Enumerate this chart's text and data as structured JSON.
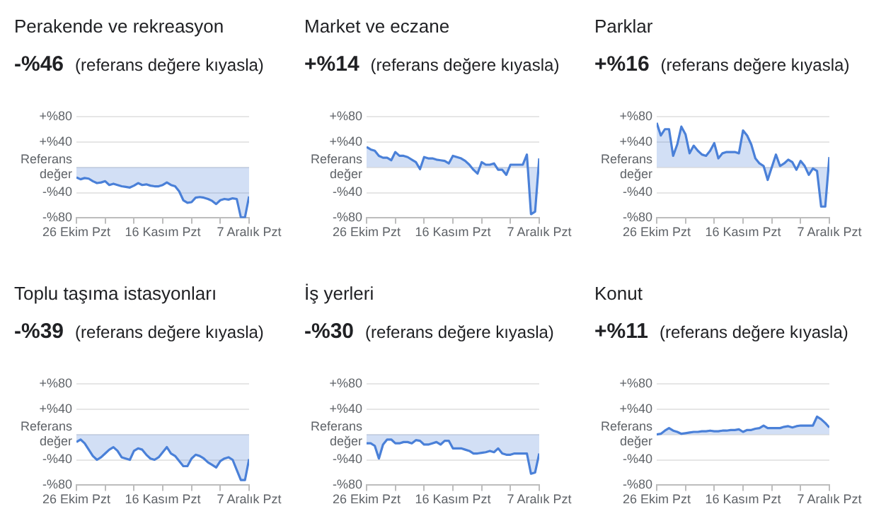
{
  "chart_data": [
    {
      "type": "area",
      "title": "Perakende ve rekreasyon",
      "subtitle": "-%46 (referans değere kıyasla)",
      "color": "#4a80d8",
      "x": [
        "--10-26",
        "--10-27",
        "--10-28",
        "--10-29",
        "--10-30",
        "--10-31",
        "--11-01",
        "--11-02",
        "--11-03",
        "--11-04",
        "--11-05",
        "--11-06",
        "--11-07",
        "--11-08",
        "--11-09",
        "--11-10",
        "--11-11",
        "--11-12",
        "--11-13",
        "--11-14",
        "--11-15",
        "--11-16",
        "--11-17",
        "--11-18",
        "--11-19",
        "--11-20",
        "--11-21",
        "--11-22",
        "--11-23",
        "--11-24",
        "--11-25",
        "--11-26",
        "--11-27",
        "--11-28",
        "--11-29",
        "--11-30",
        "--12-01",
        "--12-02",
        "--12-03",
        "--12-04",
        "--12-05",
        "--12-06",
        "--12-07"
      ],
      "values": [
        -16,
        -19,
        -17,
        -18,
        -22,
        -25,
        -24,
        -22,
        -28,
        -26,
        -28,
        -30,
        -31,
        -32,
        -29,
        -25,
        -28,
        -27,
        -29,
        -30,
        -30,
        -28,
        -24,
        -28,
        -30,
        -38,
        -52,
        -56,
        -55,
        -48,
        -47,
        -48,
        -50,
        -53,
        -58,
        -52,
        -50,
        -51,
        -49,
        -50,
        -79,
        -79,
        -46
      ],
      "xlim": [
        "--10-26",
        "--12-07"
      ],
      "xticks": [
        {
          "value": "--10-26",
          "label": "26 Ekim Pzt"
        },
        {
          "value": "--11-02",
          "label": null
        },
        {
          "value": "--11-09",
          "label": null
        },
        {
          "value": "--11-16",
          "label": "16 Kasım Pzt"
        },
        {
          "value": "--11-23",
          "label": null
        },
        {
          "value": "--11-30",
          "label": null
        },
        {
          "value": "--12-07",
          "label": "7 Aralık Pzt"
        }
      ],
      "ylim": [
        -80,
        80
      ],
      "yticks": [
        {
          "value": -80,
          "label": "-%80"
        },
        {
          "value": -40,
          "label": "-%40"
        },
        {
          "value": 0,
          "label": "Referans değer"
        },
        {
          "value": 40,
          "label": "+%40"
        },
        {
          "value": 80,
          "label": "+%80"
        }
      ],
      "grid": "y"
    },
    {
      "type": "area",
      "title": "Market ve eczane",
      "subtitle": "+%14 (referans değere kıyasla)",
      "color": "#4a80d8",
      "x": [
        "--10-26",
        "--10-27",
        "--10-28",
        "--10-29",
        "--10-30",
        "--10-31",
        "--11-01",
        "--11-02",
        "--11-03",
        "--11-04",
        "--11-05",
        "--11-06",
        "--11-07",
        "--11-08",
        "--11-09",
        "--11-10",
        "--11-11",
        "--11-12",
        "--11-13",
        "--11-14",
        "--11-15",
        "--11-16",
        "--11-17",
        "--11-18",
        "--11-19",
        "--11-20",
        "--11-21",
        "--11-22",
        "--11-23",
        "--11-24",
        "--11-25",
        "--11-26",
        "--11-27",
        "--11-28",
        "--11-29",
        "--11-30",
        "--12-01",
        "--12-02",
        "--12-03",
        "--12-04",
        "--12-05",
        "--12-06",
        "--12-07"
      ],
      "values": [
        32,
        28,
        26,
        18,
        15,
        15,
        11,
        24,
        18,
        18,
        16,
        12,
        8,
        -3,
        16,
        14,
        14,
        12,
        11,
        10,
        6,
        18,
        16,
        14,
        10,
        4,
        -4,
        -10,
        8,
        4,
        4,
        6,
        -4,
        -4,
        -12,
        4,
        4,
        4,
        4,
        20,
        -74,
        -70,
        14
      ],
      "xlim": [
        "--10-26",
        "--12-07"
      ],
      "xticks": [
        {
          "value": "--10-26",
          "label": "26 Ekim Pzt"
        },
        {
          "value": "--11-02",
          "label": null
        },
        {
          "value": "--11-09",
          "label": null
        },
        {
          "value": "--11-16",
          "label": "16 Kasım Pzt"
        },
        {
          "value": "--11-23",
          "label": null
        },
        {
          "value": "--11-30",
          "label": null
        },
        {
          "value": "--12-07",
          "label": "7 Aralık Pzt"
        }
      ],
      "ylim": [
        -80,
        80
      ],
      "yticks": [
        {
          "value": -80,
          "label": "-%80"
        },
        {
          "value": -40,
          "label": "-%40"
        },
        {
          "value": 0,
          "label": "Referans değer"
        },
        {
          "value": 40,
          "label": "+%40"
        },
        {
          "value": 80,
          "label": "+%80"
        }
      ],
      "grid": "y"
    },
    {
      "type": "area",
      "title": "Parklar",
      "subtitle": "+%16 (referans değere kıyasla)",
      "color": "#4a80d8",
      "x": [
        "--10-26",
        "--10-27",
        "--10-28",
        "--10-29",
        "--10-30",
        "--10-31",
        "--11-01",
        "--11-02",
        "--11-03",
        "--11-04",
        "--11-05",
        "--11-06",
        "--11-07",
        "--11-08",
        "--11-09",
        "--11-10",
        "--11-11",
        "--11-12",
        "--11-13",
        "--11-14",
        "--11-15",
        "--11-16",
        "--11-17",
        "--11-18",
        "--11-19",
        "--11-20",
        "--11-21",
        "--11-22",
        "--11-23",
        "--11-24",
        "--11-25",
        "--11-26",
        "--11-27",
        "--11-28",
        "--11-29",
        "--11-30",
        "--12-01",
        "--12-02",
        "--12-03",
        "--12-04",
        "--12-05",
        "--12-06",
        "--12-07"
      ],
      "values": [
        70,
        50,
        60,
        60,
        18,
        36,
        64,
        52,
        22,
        34,
        26,
        20,
        18,
        26,
        38,
        14,
        22,
        24,
        24,
        24,
        22,
        58,
        50,
        36,
        14,
        6,
        2,
        -20,
        0,
        20,
        2,
        6,
        12,
        8,
        -4,
        10,
        2,
        -12,
        -2,
        -6,
        -62,
        -62,
        16
      ],
      "xlim": [
        "--10-26",
        "--12-07"
      ],
      "xticks": [
        {
          "value": "--10-26",
          "label": "26 Ekim Pzt"
        },
        {
          "value": "--11-02",
          "label": null
        },
        {
          "value": "--11-09",
          "label": null
        },
        {
          "value": "--11-16",
          "label": "16 Kasım Pzt"
        },
        {
          "value": "--11-23",
          "label": null
        },
        {
          "value": "--11-30",
          "label": null
        },
        {
          "value": "--12-07",
          "label": "7 Aralık Pzt"
        }
      ],
      "ylim": [
        -80,
        80
      ],
      "yticks": [
        {
          "value": -80,
          "label": "-%80"
        },
        {
          "value": -40,
          "label": "-%40"
        },
        {
          "value": 0,
          "label": "Referans değer"
        },
        {
          "value": 40,
          "label": "+%40"
        },
        {
          "value": 80,
          "label": "+%80"
        }
      ],
      "grid": "y"
    },
    {
      "type": "area",
      "title": "Toplu taşıma istasyonları",
      "subtitle": "-%39 (referans değere kıyasla)",
      "color": "#4a80d8",
      "x": [
        "--10-26",
        "--10-27",
        "--10-28",
        "--10-29",
        "--10-30",
        "--10-31",
        "--11-01",
        "--11-02",
        "--11-03",
        "--11-04",
        "--11-05",
        "--11-06",
        "--11-07",
        "--11-08",
        "--11-09",
        "--11-10",
        "--11-11",
        "--11-12",
        "--11-13",
        "--11-14",
        "--11-15",
        "--11-16",
        "--11-17",
        "--11-18",
        "--11-19",
        "--11-20",
        "--11-21",
        "--11-22",
        "--11-23",
        "--11-24",
        "--11-25",
        "--11-26",
        "--11-27",
        "--11-28",
        "--11-29",
        "--11-30",
        "--12-01",
        "--12-02",
        "--12-03",
        "--12-04",
        "--12-05",
        "--12-06",
        "--12-07"
      ],
      "values": [
        -12,
        -8,
        -14,
        -24,
        -34,
        -40,
        -36,
        -30,
        -24,
        -20,
        -26,
        -36,
        -38,
        -40,
        -26,
        -22,
        -24,
        -32,
        -38,
        -40,
        -36,
        -28,
        -20,
        -30,
        -34,
        -42,
        -50,
        -50,
        -38,
        -32,
        -34,
        -38,
        -44,
        -48,
        -52,
        -42,
        -38,
        -36,
        -40,
        -56,
        -72,
        -72,
        -39
      ],
      "xlim": [
        "--10-26",
        "--12-07"
      ],
      "xticks": [
        {
          "value": "--10-26",
          "label": "26 Ekim Pzt"
        },
        {
          "value": "--11-02",
          "label": null
        },
        {
          "value": "--11-09",
          "label": null
        },
        {
          "value": "--11-16",
          "label": "16 Kasım Pzt"
        },
        {
          "value": "--11-23",
          "label": null
        },
        {
          "value": "--11-30",
          "label": null
        },
        {
          "value": "--12-07",
          "label": "7 Aralık Pzt"
        }
      ],
      "ylim": [
        -80,
        80
      ],
      "yticks": [
        {
          "value": -80,
          "label": "-%80"
        },
        {
          "value": -40,
          "label": "-%40"
        },
        {
          "value": 0,
          "label": "Referans değer"
        },
        {
          "value": 40,
          "label": "+%40"
        },
        {
          "value": 80,
          "label": "+%80"
        }
      ],
      "grid": "y"
    },
    {
      "type": "area",
      "title": "İş yerleri",
      "subtitle": "-%30 (referans değere kıyasla)",
      "color": "#4a80d8",
      "x": [
        "--10-26",
        "--10-27",
        "--10-28",
        "--10-29",
        "--10-30",
        "--10-31",
        "--11-01",
        "--11-02",
        "--11-03",
        "--11-04",
        "--11-05",
        "--11-06",
        "--11-07",
        "--11-08",
        "--11-09",
        "--11-10",
        "--11-11",
        "--11-12",
        "--11-13",
        "--11-14",
        "--11-15",
        "--11-16",
        "--11-17",
        "--11-18",
        "--11-19",
        "--11-20",
        "--11-21",
        "--11-22",
        "--11-23",
        "--11-24",
        "--11-25",
        "--11-26",
        "--11-27",
        "--11-28",
        "--11-29",
        "--11-30",
        "--12-01",
        "--12-02",
        "--12-03",
        "--12-04",
        "--12-05",
        "--12-06",
        "--12-07"
      ],
      "values": [
        -14,
        -14,
        -18,
        -38,
        -16,
        -8,
        -8,
        -14,
        -14,
        -12,
        -12,
        -14,
        -9,
        -10,
        -16,
        -16,
        -14,
        -12,
        -16,
        -10,
        -10,
        -22,
        -22,
        -22,
        -24,
        -26,
        -30,
        -30,
        -29,
        -28,
        -26,
        -28,
        -22,
        -30,
        -32,
        -32,
        -30,
        -30,
        -30,
        -30,
        -62,
        -60,
        -30
      ],
      "xlim": [
        "--10-26",
        "--12-07"
      ],
      "xticks": [
        {
          "value": "--10-26",
          "label": "26 Ekim Pzt"
        },
        {
          "value": "--11-02",
          "label": null
        },
        {
          "value": "--11-09",
          "label": null
        },
        {
          "value": "--11-16",
          "label": "16 Kasım Pzt"
        },
        {
          "value": "--11-23",
          "label": null
        },
        {
          "value": "--11-30",
          "label": null
        },
        {
          "value": "--12-07",
          "label": "7 Aralık Pzt"
        }
      ],
      "ylim": [
        -80,
        80
      ],
      "yticks": [
        {
          "value": -80,
          "label": "-%80"
        },
        {
          "value": -40,
          "label": "-%40"
        },
        {
          "value": 0,
          "label": "Referans değer"
        },
        {
          "value": 40,
          "label": "+%40"
        },
        {
          "value": 80,
          "label": "+%80"
        }
      ],
      "grid": "y"
    },
    {
      "type": "area",
      "title": "Konut",
      "subtitle": "+%11 (referans değere kıyasla)",
      "color": "#4a80d8",
      "x": [
        "--10-26",
        "--10-27",
        "--10-28",
        "--10-29",
        "--10-30",
        "--10-31",
        "--11-01",
        "--11-02",
        "--11-03",
        "--11-04",
        "--11-05",
        "--11-06",
        "--11-07",
        "--11-08",
        "--11-09",
        "--11-10",
        "--11-11",
        "--11-12",
        "--11-13",
        "--11-14",
        "--11-15",
        "--11-16",
        "--11-17",
        "--11-18",
        "--11-19",
        "--11-20",
        "--11-21",
        "--11-22",
        "--11-23",
        "--11-24",
        "--11-25",
        "--11-26",
        "--11-27",
        "--11-28",
        "--11-29",
        "--11-30",
        "--12-01",
        "--12-02",
        "--12-03",
        "--12-04",
        "--12-05",
        "--12-06",
        "--12-07"
      ],
      "values": [
        0,
        1,
        6,
        10,
        6,
        4,
        1,
        2,
        3,
        4,
        4,
        5,
        5,
        6,
        5,
        5,
        6,
        6,
        7,
        7,
        8,
        4,
        7,
        7,
        9,
        10,
        14,
        10,
        10,
        10,
        10,
        12,
        13,
        11,
        13,
        14,
        14,
        14,
        14,
        28,
        24,
        18,
        11
      ],
      "xlim": [
        "--10-26",
        "--12-07"
      ],
      "xticks": [
        {
          "value": "--10-26",
          "label": "26 Ekim Pzt"
        },
        {
          "value": "--11-02",
          "label": null
        },
        {
          "value": "--11-09",
          "label": null
        },
        {
          "value": "--11-16",
          "label": "16 Kasım Pzt"
        },
        {
          "value": "--11-23",
          "label": null
        },
        {
          "value": "--11-30",
          "label": null
        },
        {
          "value": "--12-07",
          "label": "7 Aralık Pzt"
        }
      ],
      "ylim": [
        -80,
        80
      ],
      "yticks": [
        {
          "value": -80,
          "label": "-%80"
        },
        {
          "value": -40,
          "label": "-%40"
        },
        {
          "value": 0,
          "label": "Referans değer"
        },
        {
          "value": 40,
          "label": "+%40"
        },
        {
          "value": 80,
          "label": "+%80"
        }
      ],
      "grid": "y"
    }
  ]
}
